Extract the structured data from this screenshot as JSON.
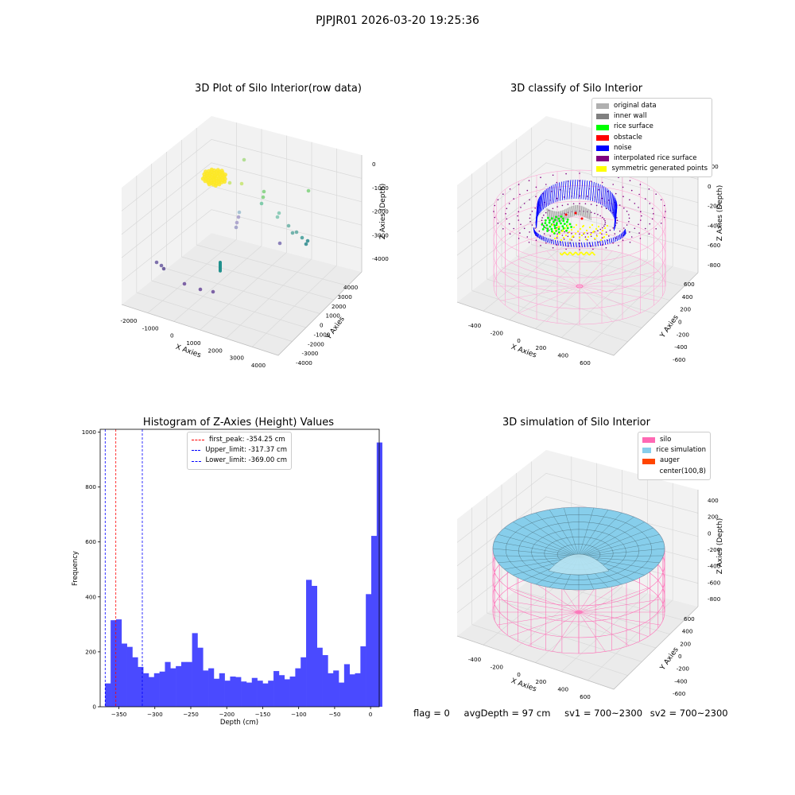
{
  "suptitle": "PJPJR01 2026-03-20 19:25:36",
  "status": {
    "flag": "flag = 0",
    "avg_depth": "avgDepth = 97 cm",
    "sv1": "sv1 = 700~2300",
    "sv2": "sv2 = 700~2300"
  },
  "colors": {
    "histogram": "#4a4aff",
    "first_peak": "#ff0000",
    "limits": "#0000ff",
    "silo": "#ff69b4",
    "rice": "#87ceeb",
    "auger": "#ff4500"
  },
  "chart_data": [
    {
      "type": "scatter",
      "subtype": "3d",
      "title": "3D Plot of Silo Interior(row data)",
      "xlabel": "X Axies",
      "ylabel": "Y Axies",
      "zlabel": "Z Axies (Depth)",
      "x_ticks": [
        "-2000",
        "-1000",
        "0",
        "1000",
        "2000",
        "3000",
        "4000"
      ],
      "y_ticks": [
        "-4000",
        "-3000",
        "-2000",
        "-1000",
        "0",
        "1000",
        "2000",
        "3000",
        "4000"
      ],
      "z_ticks": [
        "0",
        "-1000",
        "-2000",
        "-3000",
        "-4000"
      ],
      "xlim": [
        -2300,
        4500
      ],
      "ylim": [
        -4200,
        4500
      ],
      "zlim": [
        -4500,
        200
      ],
      "colormap": "viridis"
    },
    {
      "type": "scatter",
      "subtype": "3d",
      "title": "3D classify of Silo Interior",
      "xlabel": "X Axies",
      "ylabel": "Y Axies",
      "zlabel": "Z Axies (Depth)",
      "x_ticks": [
        "-400",
        "-200",
        "0",
        "200",
        "400",
        "600"
      ],
      "y_ticks": [
        "-600",
        "-400",
        "-200",
        "0",
        "200",
        "400",
        "600"
      ],
      "z_ticks": [
        "200",
        "0",
        "-200",
        "-400",
        "-600",
        "-800"
      ],
      "legend": [
        {
          "label": "original data",
          "color": "#b0b0b0"
        },
        {
          "label": "inner wall",
          "color": "#808080"
        },
        {
          "label": "rice surface",
          "color": "#00ff00"
        },
        {
          "label": "obstacle",
          "color": "#ff0000"
        },
        {
          "label": "noise",
          "color": "#0000ff"
        },
        {
          "label": "interpolated rice surface",
          "color": "#800080"
        },
        {
          "label": "symmetric generated points",
          "color": "#ffff00"
        }
      ]
    },
    {
      "type": "bar",
      "subtype": "histogram",
      "title": "Histogram of Z-Axies (Height) Values",
      "xlabel": "Depth (cm)",
      "ylabel": "Frequency",
      "xlim": [
        -376,
        12
      ],
      "ylim": [
        0,
        1010
      ],
      "x_ticks": [
        -350,
        -300,
        -250,
        -200,
        -150,
        -100,
        -50,
        0
      ],
      "y_ticks": [
        0,
        200,
        400,
        600,
        800,
        1000
      ],
      "bin_start": -369,
      "bin_width": 7.55,
      "counts": [
        85,
        315,
        318,
        230,
        218,
        180,
        145,
        122,
        108,
        122,
        128,
        163,
        140,
        148,
        163,
        163,
        268,
        215,
        132,
        140,
        102,
        122,
        95,
        110,
        108,
        92,
        88,
        105,
        95,
        85,
        95,
        130,
        115,
        100,
        110,
        140,
        180,
        462,
        440,
        215,
        188,
        122,
        132,
        88,
        155,
        118,
        122,
        220,
        410,
        622,
        962
      ],
      "lines": [
        {
          "label": "first_peak: -354.25 cm",
          "x": -354.25,
          "color": "#ff0000"
        },
        {
          "label": "Upper_limit: -317.37 cm",
          "x": -317.37,
          "color": "#0000ff"
        },
        {
          "label": "Lower_limit: -369.00 cm",
          "x": -369.0,
          "color": "#0000ff"
        }
      ]
    },
    {
      "type": "scatter",
      "subtype": "3d-surface",
      "title": "3D simulation of Silo Interior",
      "xlabel": "X Axies",
      "ylabel": "Y Axies",
      "zlabel": "Z Axies (Depth)",
      "x_ticks": [
        "-400",
        "-200",
        "0",
        "200",
        "400",
        "600"
      ],
      "y_ticks": [
        "-600",
        "-400",
        "-200",
        "0",
        "200",
        "400",
        "600"
      ],
      "z_ticks": [
        "400",
        "200",
        "0",
        "-200",
        "-400",
        "-600",
        "-800"
      ],
      "legend": [
        {
          "label": "silo",
          "color": "#ff69b4"
        },
        {
          "label": "rice simulation",
          "color": "#87ceeb"
        },
        {
          "label": "auger",
          "color": "#ff4500"
        },
        {
          "label": "center(100,8)",
          "color": ""
        }
      ]
    }
  ]
}
